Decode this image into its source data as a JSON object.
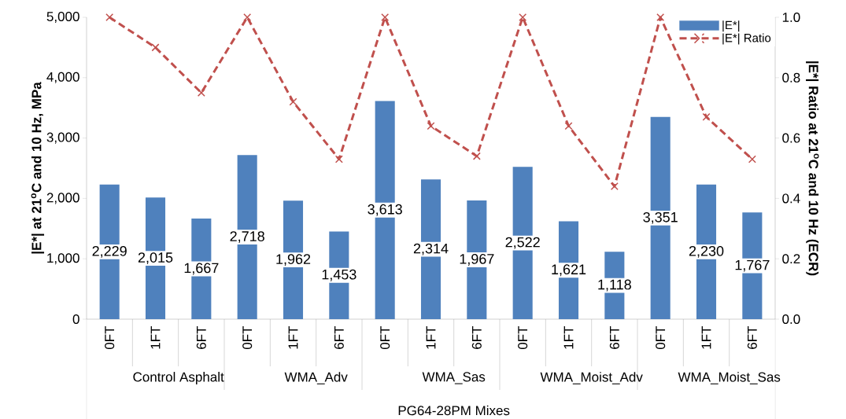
{
  "chart_data": {
    "type": "bar",
    "categories": [
      "0FT",
      "1FT",
      "6FT",
      "0FT",
      "1FT",
      "6FT",
      "0FT",
      "1FT",
      "6FT",
      "0FT",
      "1FT",
      "6FT",
      "0FT",
      "1FT",
      "6FT"
    ],
    "annotations": [
      "Control Asphalt",
      "WMA_Adv",
      "WMA_Sas",
      "WMA_Moist_Adv",
      "WMA_Moist_Sas"
    ],
    "xlabel": "PG64-28PM Mixes",
    "ylabel": "|E*|  at 21$^{o}$C and 10 Hz, MPa",
    "y2label": "|E*| Ratio at 21$^{o}$C and 10 Hz (ECR)",
    "series": [
      {
        "name": "|E*|",
        "color": "#4f81bd",
        "values": [
          2229,
          2015,
          1667,
          2718,
          1962,
          1453,
          3613,
          2314,
          1967,
          2522,
          1621,
          1118,
          3351,
          2230,
          1767
        ],
        "value_labels": [
          "2,229",
          "2,015",
          "1,667",
          "2,718",
          "1,962",
          "1,453",
          "3,613",
          "2,314",
          "1,967",
          "2,522",
          "1,621",
          "1,118",
          "3,351",
          "2,230",
          "1,767"
        ]
      },
      {
        "name": "|E*| Ratio",
        "type": "line",
        "axis": "y2",
        "color": "#c0504d",
        "marker": "cross",
        "line_style": "dashed",
        "values": [
          1.0,
          0.9,
          0.75,
          1.0,
          0.72,
          0.53,
          1.0,
          0.64,
          0.54,
          1.0,
          0.64,
          0.44,
          1.0,
          0.67,
          0.53
        ]
      }
    ],
    "ylim": [
      0,
      5000
    ],
    "yticks": [
      {
        "value": 0,
        "label": "0"
      },
      {
        "value": 1000,
        "label": "1,000"
      },
      {
        "value": 2000,
        "label": "2,000"
      },
      {
        "value": 3000,
        "label": "3,000"
      },
      {
        "value": 4000,
        "label": "4,000"
      },
      {
        "value": 5000,
        "label": "5,000"
      }
    ],
    "y2lim": [
      0,
      1
    ],
    "y2ticks": [
      {
        "value": 0,
        "label": "0.0"
      },
      {
        "value": 0.2,
        "label": "0.2"
      },
      {
        "value": 0.4,
        "label": "0.4"
      },
      {
        "value": 0.6,
        "label": "0.6"
      },
      {
        "value": 0.8,
        "label": "0.8"
      },
      {
        "value": 1,
        "label": "1.0"
      }
    ],
    "legend": "top right"
  }
}
